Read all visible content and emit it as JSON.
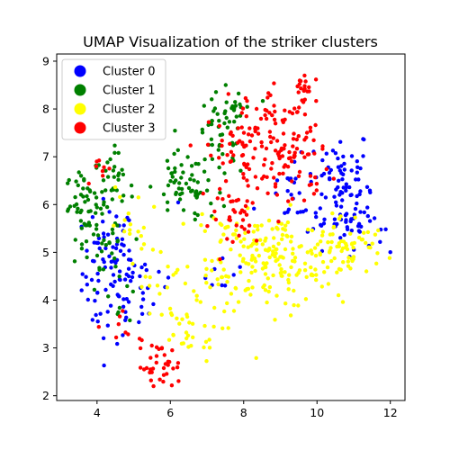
{
  "chart_data": {
    "type": "scatter",
    "title": "UMAP Visualization of the striker clusters",
    "xlabel": "",
    "ylabel": "",
    "xlim": [
      2.9,
      12.4
    ],
    "ylim": [
      1.9,
      9.15
    ],
    "xticks": [
      4,
      6,
      8,
      10,
      12
    ],
    "yticks": [
      2,
      3,
      4,
      5,
      6,
      7,
      8,
      9
    ],
    "grid": false,
    "legend_position": "top-left",
    "series": [
      {
        "name": "Cluster 0",
        "color": "#0000ff",
        "regions": [
          {
            "cx": 4.3,
            "cy": 4.6,
            "sx": 0.35,
            "sy": 0.75,
            "n": 70
          },
          {
            "cx": 4.9,
            "cy": 4.2,
            "sx": 0.3,
            "sy": 0.5,
            "n": 30
          },
          {
            "cx": 10.6,
            "cy": 6.4,
            "sx": 0.45,
            "sy": 0.65,
            "n": 85
          },
          {
            "cx": 11.2,
            "cy": 5.6,
            "sx": 0.3,
            "sy": 0.3,
            "n": 25
          },
          {
            "cx": 9.3,
            "cy": 6.2,
            "sx": 0.5,
            "sy": 0.4,
            "n": 25
          },
          {
            "cx": 5.6,
            "cy": 5.0,
            "sx": 0.3,
            "sy": 0.6,
            "n": 10
          },
          {
            "cx": 7.4,
            "cy": 4.6,
            "sx": 0.3,
            "sy": 0.3,
            "n": 8
          }
        ]
      },
      {
        "name": "Cluster 1",
        "color": "#008000",
        "regions": [
          {
            "cx": 3.7,
            "cy": 6.0,
            "sx": 0.3,
            "sy": 0.35,
            "n": 50
          },
          {
            "cx": 4.4,
            "cy": 6.3,
            "sx": 0.3,
            "sy": 0.4,
            "n": 35
          },
          {
            "cx": 4.2,
            "cy": 5.2,
            "sx": 0.3,
            "sy": 0.5,
            "n": 20
          },
          {
            "cx": 6.3,
            "cy": 6.4,
            "sx": 0.4,
            "sy": 0.35,
            "n": 45
          },
          {
            "cx": 7.4,
            "cy": 7.4,
            "sx": 0.35,
            "sy": 0.45,
            "n": 40
          },
          {
            "cx": 7.8,
            "cy": 8.0,
            "sx": 0.3,
            "sy": 0.25,
            "n": 15
          },
          {
            "cx": 7.0,
            "cy": 6.2,
            "sx": 0.3,
            "sy": 0.3,
            "n": 15
          },
          {
            "cx": 4.6,
            "cy": 4.3,
            "sx": 0.3,
            "sy": 0.4,
            "n": 10
          }
        ]
      },
      {
        "name": "Cluster 2",
        "color": "#ffff00",
        "regions": [
          {
            "cx": 8.8,
            "cy": 4.8,
            "sx": 0.8,
            "sy": 0.5,
            "n": 150
          },
          {
            "cx": 10.7,
            "cy": 5.1,
            "sx": 0.6,
            "sy": 0.35,
            "n": 70
          },
          {
            "cx": 7.4,
            "cy": 5.0,
            "sx": 0.4,
            "sy": 0.55,
            "n": 40
          },
          {
            "cx": 6.4,
            "cy": 3.3,
            "sx": 0.5,
            "sy": 0.3,
            "n": 30
          },
          {
            "cx": 5.0,
            "cy": 5.4,
            "sx": 0.3,
            "sy": 0.5,
            "n": 20
          },
          {
            "cx": 5.8,
            "cy": 4.3,
            "sx": 0.3,
            "sy": 0.4,
            "n": 15
          }
        ]
      },
      {
        "name": "Cluster 3",
        "color": "#ff0000",
        "regions": [
          {
            "cx": 9.2,
            "cy": 7.2,
            "sx": 0.55,
            "sy": 0.7,
            "n": 110
          },
          {
            "cx": 7.9,
            "cy": 7.0,
            "sx": 0.45,
            "sy": 0.6,
            "n": 70
          },
          {
            "cx": 9.6,
            "cy": 8.5,
            "sx": 0.2,
            "sy": 0.15,
            "n": 15
          },
          {
            "cx": 5.7,
            "cy": 2.6,
            "sx": 0.3,
            "sy": 0.25,
            "n": 35
          },
          {
            "cx": 7.9,
            "cy": 5.7,
            "sx": 0.4,
            "sy": 0.3,
            "n": 25
          },
          {
            "cx": 4.2,
            "cy": 6.7,
            "sx": 0.15,
            "sy": 0.15,
            "n": 8
          },
          {
            "cx": 4.8,
            "cy": 3.4,
            "sx": 0.2,
            "sy": 0.25,
            "n": 8
          }
        ]
      }
    ]
  }
}
